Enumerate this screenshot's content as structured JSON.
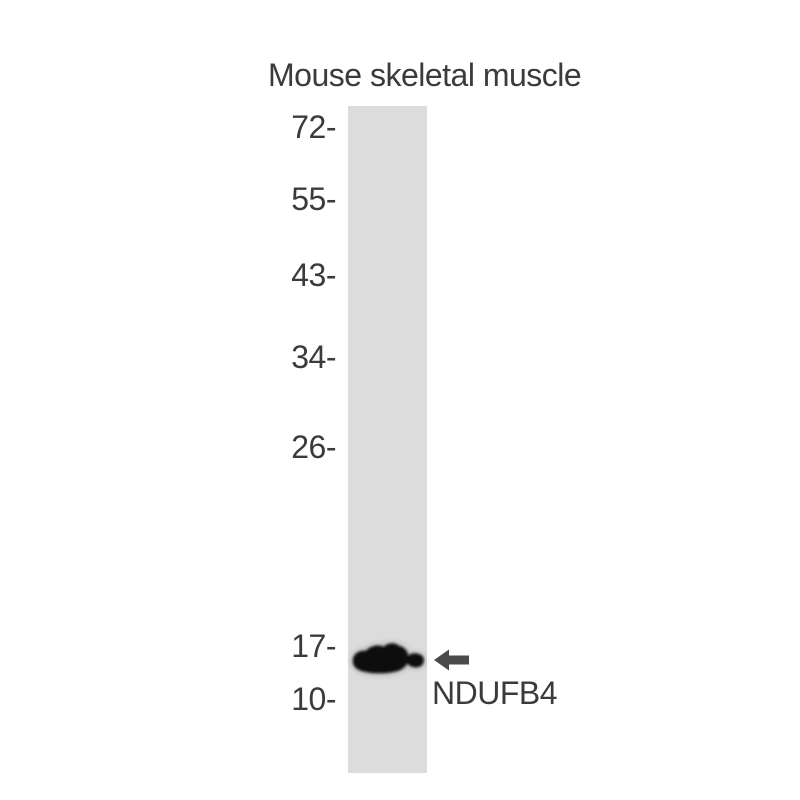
{
  "header": {
    "title": "Mouse skeletal muscle"
  },
  "markers": {
    "labels": [
      "72-",
      "55-",
      "43-",
      "34-",
      "26-",
      "17-",
      "10-"
    ]
  },
  "annotation": {
    "target_label": "NDUFB4",
    "pointer_icon": "left-arrow-icon"
  },
  "colors": {
    "background": "#ffffff",
    "lane": "#dcdcdc",
    "band": "#080808",
    "arrow": "#4a4a4a",
    "text": "#3b3b3b"
  }
}
